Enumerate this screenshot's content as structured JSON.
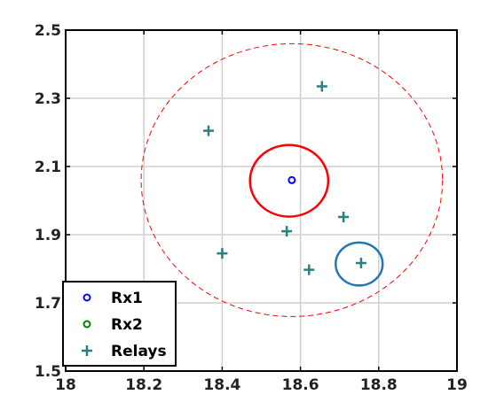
{
  "chart_data": {
    "type": "scatter",
    "title": "",
    "xlabel": "",
    "ylabel": "",
    "xlim": [
      18,
      19
    ],
    "ylim": [
      1.5,
      2.5
    ],
    "grid": true,
    "x_ticks": [
      18,
      18.2,
      18.4,
      18.6,
      18.8,
      19
    ],
    "x_tick_labels": [
      "18",
      "18.2",
      "18.4",
      "18.6",
      "18.8",
      "19"
    ],
    "y_ticks": [
      1.5,
      1.7,
      1.9,
      2.1,
      2.3,
      2.5
    ],
    "y_tick_labels": [
      "1.5",
      "1.7",
      "1.9",
      "2.1",
      "2.3",
      "2.5"
    ],
    "legend_position": "bottom-left",
    "series": [
      {
        "name": "Rx1",
        "marker": "o",
        "color": "#0000ff",
        "x": [
          18.578
        ],
        "y": [
          2.06
        ]
      },
      {
        "name": "Rx2",
        "marker": "o",
        "color": "#008000",
        "x": [],
        "y": []
      },
      {
        "name": "Relays",
        "marker": "+",
        "color": "#2a7f7f",
        "x": [
          18.365,
          18.655,
          18.4,
          18.565,
          18.71,
          18.622,
          18.755
        ],
        "y": [
          2.205,
          2.335,
          1.845,
          1.91,
          1.952,
          1.797,
          1.817
        ]
      }
    ],
    "circles": [
      {
        "style": "dashed",
        "color": "#ff0000",
        "cx": 18.578,
        "cy": 2.06,
        "rx": 0.385,
        "ry": 0.4
      },
      {
        "style": "solid",
        "color": "#ff0000",
        "cx": 18.571,
        "cy": 2.058,
        "rx": 0.1,
        "ry": 0.105
      },
      {
        "style": "solid",
        "color": "#1f77b4",
        "cx": 18.75,
        "cy": 1.814,
        "rx": 0.06,
        "ry": 0.063
      }
    ]
  }
}
